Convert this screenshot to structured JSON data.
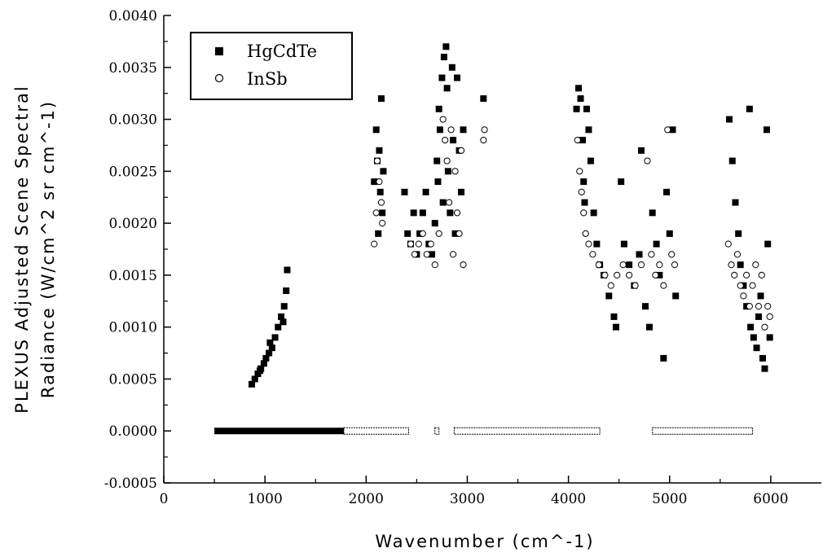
{
  "chart_data": {
    "type": "scatter",
    "title": "",
    "xlabel": "Wavenumber (cm^-1)",
    "ylabel": "PLEXUS Adjusted Scene Spectral Radiance (W/cm^2 sr cm^-1)",
    "xlim": [
      0,
      6500
    ],
    "ylim": [
      -0.0005,
      0.004
    ],
    "x_ticks": [
      0,
      1000,
      2000,
      3000,
      4000,
      5000,
      6000
    ],
    "x_tick_labels": [
      "0",
      "1000",
      "2000",
      "3000",
      "4000",
      "5000",
      "6000"
    ],
    "y_ticks": [
      -0.0005,
      0.0,
      0.0005,
      0.001,
      0.0015,
      0.002,
      0.0025,
      0.003,
      0.0035,
      0.004
    ],
    "y_tick_labels": [
      "-0.0005",
      "0.0000",
      "0.0005",
      "0.0010",
      "0.0015",
      "0.0020",
      "0.0025",
      "0.0030",
      "0.0035",
      "0.0040"
    ],
    "grid": false,
    "legend_position": "top-left",
    "series": [
      {
        "name": "HgCdTe",
        "marker": "filled-square",
        "color": "#000000",
        "points": [
          [
            870,
            0.00045
          ],
          [
            900,
            0.0005
          ],
          [
            930,
            0.00055
          ],
          [
            960,
            0.0006
          ],
          [
            990,
            0.00065
          ],
          [
            1010,
            0.0007
          ],
          [
            1040,
            0.00075
          ],
          [
            1070,
            0.0008
          ],
          [
            1100,
            0.0009
          ],
          [
            1130,
            0.001
          ],
          [
            1160,
            0.0011
          ],
          [
            1190,
            0.0012
          ],
          [
            1210,
            0.00135
          ],
          [
            1220,
            0.00155
          ],
          [
            1050,
            0.00085
          ],
          [
            950,
            0.00058
          ],
          [
            1180,
            0.00105
          ],
          [
            2080,
            0.0024
          ],
          [
            2100,
            0.0029
          ],
          [
            2110,
            0.0026
          ],
          [
            2130,
            0.0027
          ],
          [
            2150,
            0.0032
          ],
          [
            2140,
            0.0023
          ],
          [
            2160,
            0.0021
          ],
          [
            2120,
            0.0019
          ],
          [
            2170,
            0.0025
          ],
          [
            2380,
            0.0023
          ],
          [
            2410,
            0.0019
          ],
          [
            2440,
            0.0018
          ],
          [
            2470,
            0.0021
          ],
          [
            2500,
            0.0017
          ],
          [
            2530,
            0.0019
          ],
          [
            2560,
            0.0021
          ],
          [
            2590,
            0.0023
          ],
          [
            2620,
            0.0018
          ],
          [
            2650,
            0.0017
          ],
          [
            2680,
            0.002
          ],
          [
            2700,
            0.0026
          ],
          [
            2710,
            0.0024
          ],
          [
            2720,
            0.0031
          ],
          [
            2730,
            0.0029
          ],
          [
            2750,
            0.0034
          ],
          [
            2760,
            0.0022
          ],
          [
            2770,
            0.0036
          ],
          [
            2790,
            0.0037
          ],
          [
            2800,
            0.0033
          ],
          [
            2810,
            0.0025
          ],
          [
            2830,
            0.0021
          ],
          [
            2850,
            0.0035
          ],
          [
            2860,
            0.0028
          ],
          [
            2880,
            0.0019
          ],
          [
            2900,
            0.0034
          ],
          [
            2920,
            0.0027
          ],
          [
            2940,
            0.0023
          ],
          [
            2960,
            0.0029
          ],
          [
            3160,
            0.0032
          ],
          [
            4080,
            0.0031
          ],
          [
            4100,
            0.0033
          ],
          [
            4120,
            0.0032
          ],
          [
            4140,
            0.0028
          ],
          [
            4150,
            0.0024
          ],
          [
            4160,
            0.0022
          ],
          [
            4180,
            0.0031
          ],
          [
            4200,
            0.0029
          ],
          [
            4220,
            0.0026
          ],
          [
            4250,
            0.0021
          ],
          [
            4280,
            0.0018
          ],
          [
            4310,
            0.0016
          ],
          [
            4350,
            0.0015
          ],
          [
            4400,
            0.0013
          ],
          [
            4450,
            0.0011
          ],
          [
            4470,
            0.001
          ],
          [
            4520,
            0.0024
          ],
          [
            4550,
            0.0018
          ],
          [
            4600,
            0.0016
          ],
          [
            4650,
            0.0014
          ],
          [
            4700,
            0.0017
          ],
          [
            4720,
            0.0027
          ],
          [
            4760,
            0.0012
          ],
          [
            4800,
            0.001
          ],
          [
            4830,
            0.0021
          ],
          [
            4870,
            0.0018
          ],
          [
            4900,
            0.0015
          ],
          [
            4940,
            0.0007
          ],
          [
            4970,
            0.0023
          ],
          [
            5000,
            0.0019
          ],
          [
            5030,
            0.0029
          ],
          [
            5060,
            0.0013
          ],
          [
            5590,
            0.003
          ],
          [
            5620,
            0.0026
          ],
          [
            5650,
            0.0022
          ],
          [
            5680,
            0.0019
          ],
          [
            5700,
            0.0016
          ],
          [
            5730,
            0.0014
          ],
          [
            5760,
            0.0012
          ],
          [
            5790,
            0.0031
          ],
          [
            5800,
            0.001
          ],
          [
            5830,
            0.0009
          ],
          [
            5860,
            0.0008
          ],
          [
            5880,
            0.0011
          ],
          [
            5900,
            0.0013
          ],
          [
            5920,
            0.0007
          ],
          [
            5940,
            0.0006
          ],
          [
            5960,
            0.0029
          ],
          [
            5970,
            0.0018
          ],
          [
            5990,
            0.0009
          ]
        ]
      },
      {
        "name": "InSb",
        "marker": "open-circle",
        "color": "#000000",
        "points": [
          [
            2080,
            0.0018
          ],
          [
            2100,
            0.0021
          ],
          [
            2110,
            0.0026
          ],
          [
            2130,
            0.0024
          ],
          [
            2150,
            0.0022
          ],
          [
            2160,
            0.002
          ],
          [
            2440,
            0.0018
          ],
          [
            2480,
            0.0017
          ],
          [
            2520,
            0.0018
          ],
          [
            2560,
            0.0019
          ],
          [
            2600,
            0.0017
          ],
          [
            2640,
            0.0018
          ],
          [
            2680,
            0.0016
          ],
          [
            2720,
            0.0019
          ],
          [
            2760,
            0.003
          ],
          [
            2780,
            0.0028
          ],
          [
            2800,
            0.0026
          ],
          [
            2820,
            0.0022
          ],
          [
            2840,
            0.0029
          ],
          [
            2860,
            0.0017
          ],
          [
            2880,
            0.0025
          ],
          [
            2900,
            0.0021
          ],
          [
            2920,
            0.0019
          ],
          [
            2940,
            0.0027
          ],
          [
            2960,
            0.0016
          ],
          [
            3160,
            0.0028
          ],
          [
            3170,
            0.0029
          ],
          [
            4090,
            0.0028
          ],
          [
            4110,
            0.0025
          ],
          [
            4130,
            0.0023
          ],
          [
            4150,
            0.0021
          ],
          [
            4170,
            0.0019
          ],
          [
            4200,
            0.0018
          ],
          [
            4240,
            0.0017
          ],
          [
            4300,
            0.0016
          ],
          [
            4360,
            0.0015
          ],
          [
            4420,
            0.0014
          ],
          [
            4480,
            0.0015
          ],
          [
            4540,
            0.0016
          ],
          [
            4600,
            0.0015
          ],
          [
            4660,
            0.0014
          ],
          [
            4720,
            0.0016
          ],
          [
            4780,
            0.0026
          ],
          [
            4820,
            0.0017
          ],
          [
            4860,
            0.0015
          ],
          [
            4900,
            0.0016
          ],
          [
            4940,
            0.0014
          ],
          [
            4980,
            0.0029
          ],
          [
            5020,
            0.0017
          ],
          [
            5050,
            0.0016
          ],
          [
            5580,
            0.0018
          ],
          [
            5610,
            0.0016
          ],
          [
            5640,
            0.0015
          ],
          [
            5670,
            0.0017
          ],
          [
            5700,
            0.0014
          ],
          [
            5730,
            0.0013
          ],
          [
            5760,
            0.0015
          ],
          [
            5790,
            0.0012
          ],
          [
            5820,
            0.0014
          ],
          [
            5850,
            0.0016
          ],
          [
            5880,
            0.0012
          ],
          [
            5910,
            0.0015
          ],
          [
            5940,
            0.001
          ],
          [
            5970,
            0.0012
          ],
          [
            5990,
            0.0011
          ]
        ]
      }
    ],
    "baseline_bands": [
      {
        "series": "HgCdTe",
        "x_start": 500,
        "x_end": 1780,
        "y": 0.0
      },
      {
        "series": "InSb",
        "x_start": 1780,
        "x_end": 2420,
        "y": 0.0
      },
      {
        "series": "InSb",
        "x_start": 2680,
        "x_end": 2720,
        "y": 0.0
      },
      {
        "series": "InSb",
        "x_start": 2870,
        "x_end": 4310,
        "y": 0.0
      },
      {
        "series": "InSb",
        "x_start": 4830,
        "x_end": 5820,
        "y": 0.0
      }
    ]
  }
}
